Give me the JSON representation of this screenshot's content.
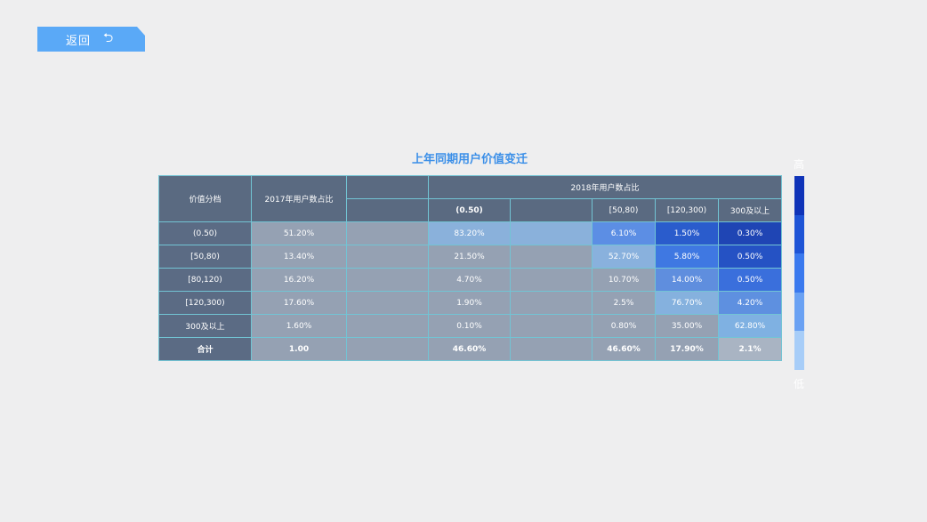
{
  "back_button": {
    "label": "返回",
    "icon": "undo-arrow-icon"
  },
  "title": "上年同期用户价值变迁",
  "table": {
    "header_value_tier": "价值分档",
    "header_2017": "2017年用户数占比",
    "header_2018": "2018年用户数占比",
    "subheaders": [
      "(0.50)",
      "",
      "[50,80)",
      "[120,300)",
      "300及以上"
    ],
    "rows": [
      {
        "tier": "(0.50)",
        "share2017": "51.20%",
        "c1": "83.20%",
        "c3": "6.10%",
        "c4": "1.50%",
        "c5": "0.30%"
      },
      {
        "tier": "[50,80)",
        "share2017": "13.40%",
        "c1": "21.50%",
        "c3": "52.70%",
        "c4": "5.80%",
        "c5": "0.50%"
      },
      {
        "tier": "[80,120)",
        "share2017": "16.20%",
        "c1": "4.70%",
        "c3": "10.70%",
        "c4": "14.00%",
        "c5": "0.50%"
      },
      {
        "tier": "[120,300)",
        "share2017": "17.60%",
        "c1": "1.90%",
        "c3": "2.5%",
        "c4": "76.70%",
        "c5": "4.20%"
      },
      {
        "tier": "300及以上",
        "share2017": "1.60%",
        "c1": "0.10%",
        "c3": "0.80%",
        "c4": "35.00%",
        "c5": "62.80%"
      }
    ],
    "total": {
      "tier": "合计",
      "share2017": "1.00",
      "c1": "46.60%",
      "c3": "46.60%",
      "c4": "17.90%",
      "c5": "2.1%"
    }
  },
  "cell_colors": [
    [
      "#8ab1db",
      "#8ab1db",
      "#5c8ee4",
      "#2a5ccc",
      "#1f45b4"
    ],
    [
      "#95a1b3",
      "#95a1b3",
      "#89b1dd",
      "#3f78e2",
      "#2552c4"
    ],
    [
      "#95a1b3",
      "#95a1b3",
      "#95a1b3",
      "#5f8ede",
      "#3a6fdc"
    ],
    [
      "#95a1b3",
      "#95a1b3",
      "#95a1b3",
      "#85b1de",
      "#5e90e0"
    ],
    [
      "#95a1b3",
      "#95a1b3",
      "#95a1b3",
      "#95a1b3",
      "#7fb1e2"
    ],
    [
      "#95a1b3",
      "#95a1b3",
      "#95a1b3",
      "#95a1b3",
      "#a9b4c3"
    ]
  ],
  "legend": {
    "high_label": "高",
    "low_label": "低",
    "colors": [
      "#0f33b8",
      "#1e54d6",
      "#3a79ee",
      "#6aa1f3",
      "#a7cdf8"
    ]
  }
}
